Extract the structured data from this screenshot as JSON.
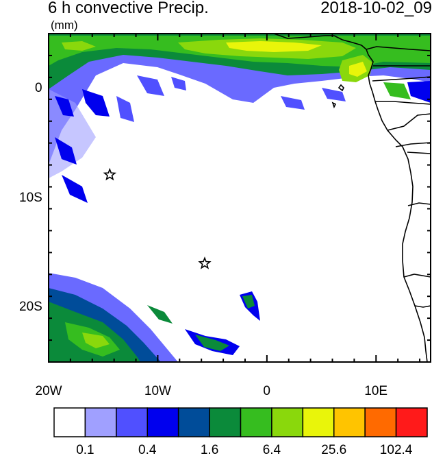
{
  "title": {
    "left": "6 h convective Precip.",
    "right": "2018-10-02_09",
    "units": "(mm)"
  },
  "map": {
    "lon_range": [
      -20,
      15
    ],
    "lat_range": [
      -25,
      5
    ],
    "x_ticks": [
      {
        "lon": -20,
        "label": "20W"
      },
      {
        "lon": -10,
        "label": "10W"
      },
      {
        "lon": 0,
        "label": "0"
      },
      {
        "lon": 10,
        "label": "10E"
      }
    ],
    "y_ticks": [
      {
        "lat": 0,
        "label": "0"
      },
      {
        "lat": -10,
        "label": "10S"
      },
      {
        "lat": -20,
        "label": "20S"
      }
    ],
    "markers": [
      {
        "name": "star-marker-ascension",
        "lon": -14.4,
        "lat": -7.9
      },
      {
        "name": "star-marker-st-helena",
        "lon": -5.7,
        "lat": -16.0
      }
    ]
  },
  "colorbar": {
    "colors": [
      "#ffffff",
      "#a0a0ff",
      "#5050ff",
      "#0000ee",
      "#004c99",
      "#0b8a3a",
      "#36bd1f",
      "#8ad80c",
      "#e9f50a",
      "#ffc400",
      "#ff6a00",
      "#ff1a1a"
    ],
    "labels": [
      "0.1",
      "0.4",
      "1.6",
      "6.4",
      "25.6",
      "102.4"
    ]
  }
}
